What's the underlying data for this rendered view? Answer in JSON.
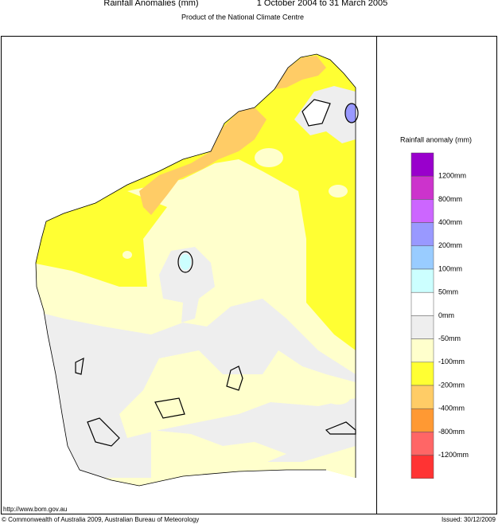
{
  "header": {
    "title": "Rainfall Anomalies (mm)",
    "period": "1 October 2004 to 31 March 2005",
    "subtitle": "Product of the National Climate Centre"
  },
  "legend": {
    "title": "Rainfall anomaly (mm)",
    "labels": [
      "1200mm",
      "800mm",
      "400mm",
      "200mm",
      "100mm",
      "50mm",
      "0mm",
      "-50mm",
      "-100mm",
      "-200mm",
      "-400mm",
      "-800mm",
      "-1200mm"
    ],
    "colors": [
      "#9900cc",
      "#cc33cc",
      "#cc66ff",
      "#9999ff",
      "#99ccff",
      "#ccffff",
      "#ffffff",
      "#eeeeee",
      "#ffffcc",
      "#ffff33",
      "#ffcc66",
      "#ff9933",
      "#ff6666",
      "#ff3333"
    ]
  },
  "footer": {
    "url": "http://www.bom.gov.au",
    "copyright": "© Commonwealth of Australia 2009, Australian Bureau of Meteorology",
    "issued": "Issued: 30/12/2009"
  }
}
